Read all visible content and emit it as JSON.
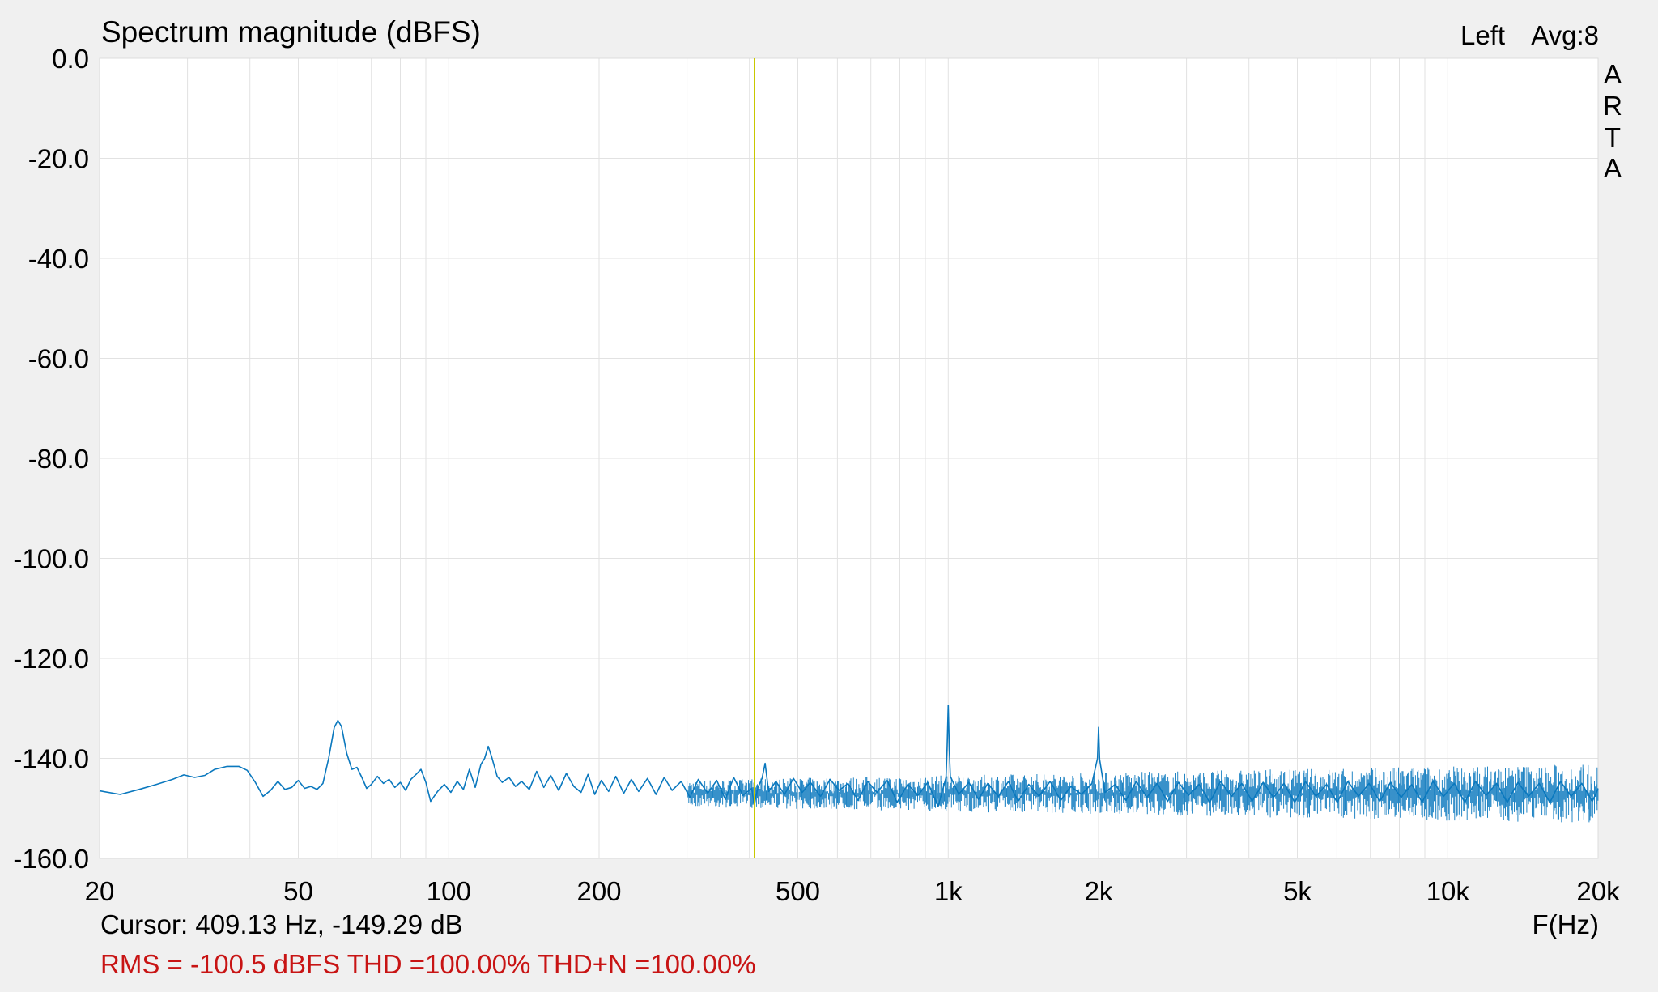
{
  "chart_data": {
    "type": "line",
    "title": "Spectrum magnitude (dBFS)",
    "channel": "Left",
    "averages": "Avg:8",
    "watermark": [
      "A",
      "R",
      "T",
      "A"
    ],
    "xlabel": "F(Hz)",
    "ylabel": "",
    "x_scale": "log",
    "xlim": [
      20,
      20000
    ],
    "ylim": [
      -160,
      0
    ],
    "x_ticks": [
      {
        "value": 20,
        "label": "20"
      },
      {
        "value": 50,
        "label": "50"
      },
      {
        "value": 100,
        "label": "100"
      },
      {
        "value": 200,
        "label": "200"
      },
      {
        "value": 500,
        "label": "500"
      },
      {
        "value": 1000,
        "label": "1k"
      },
      {
        "value": 2000,
        "label": "2k"
      },
      {
        "value": 5000,
        "label": "5k"
      },
      {
        "value": 10000,
        "label": "10k"
      },
      {
        "value": 20000,
        "label": "20k"
      }
    ],
    "y_ticks": [
      {
        "value": 0,
        "label": "0.0"
      },
      {
        "value": -20,
        "label": "-20.0"
      },
      {
        "value": -40,
        "label": "-40.0"
      },
      {
        "value": -60,
        "label": "-60.0"
      },
      {
        "value": -80,
        "label": "-80.0"
      },
      {
        "value": -100,
        "label": "-100.0"
      },
      {
        "value": -120,
        "label": "-120.0"
      },
      {
        "value": -140,
        "label": "-140.0"
      },
      {
        "value": -160,
        "label": "-160.0"
      }
    ],
    "grid": true,
    "cursor": {
      "frequency": 409.13,
      "level": -149.29
    },
    "cursor_text": "Cursor: 409.13 Hz, -149.29 dB",
    "summary_text": "RMS = -100.5 dBFS THD =100.00% THD+N =100.00%",
    "noise_floor_band": [
      -153,
      -141
    ],
    "series": [
      {
        "color": "#0a78be",
        "points": [
          [
            20,
            -146.5
          ],
          [
            22,
            -147.2
          ],
          [
            24,
            -146.2
          ],
          [
            26,
            -145.2
          ],
          [
            28,
            -144.2
          ],
          [
            29.5,
            -143.3
          ],
          [
            31,
            -143.8
          ],
          [
            32.5,
            -143.4
          ],
          [
            34,
            -142.2
          ],
          [
            36,
            -141.6
          ],
          [
            38,
            -141.6
          ],
          [
            39.5,
            -142.4
          ],
          [
            41,
            -144.8
          ],
          [
            42.5,
            -147.6
          ],
          [
            44,
            -146.4
          ],
          [
            45.5,
            -144.6
          ],
          [
            47,
            -146.2
          ],
          [
            48.5,
            -145.8
          ],
          [
            50,
            -144.4
          ],
          [
            51.5,
            -146.0
          ],
          [
            53,
            -145.6
          ],
          [
            54.5,
            -146.2
          ],
          [
            56,
            -145.0
          ],
          [
            57.5,
            -140.0
          ],
          [
            59,
            -133.8
          ],
          [
            60,
            -132.4
          ],
          [
            61,
            -133.6
          ],
          [
            62.5,
            -139.0
          ],
          [
            64,
            -142.2
          ],
          [
            65.5,
            -141.8
          ],
          [
            67,
            -143.8
          ],
          [
            68.5,
            -146.0
          ],
          [
            70,
            -145.2
          ],
          [
            72,
            -143.6
          ],
          [
            74,
            -145.0
          ],
          [
            76,
            -144.2
          ],
          [
            78,
            -145.8
          ],
          [
            80,
            -144.8
          ],
          [
            82,
            -146.4
          ],
          [
            84,
            -144.2
          ],
          [
            86,
            -143.2
          ],
          [
            88,
            -142.2
          ],
          [
            90,
            -144.8
          ],
          [
            92,
            -148.6
          ],
          [
            95,
            -146.6
          ],
          [
            98,
            -145.2
          ],
          [
            101,
            -146.8
          ],
          [
            104,
            -144.6
          ],
          [
            107,
            -146.2
          ],
          [
            110,
            -142.2
          ],
          [
            113,
            -145.8
          ],
          [
            116,
            -141.2
          ],
          [
            118,
            -140.0
          ],
          [
            120,
            -137.6
          ],
          [
            122,
            -139.8
          ],
          [
            125,
            -143.6
          ],
          [
            128,
            -144.8
          ],
          [
            132,
            -143.8
          ],
          [
            136,
            -145.6
          ],
          [
            140,
            -144.6
          ],
          [
            145,
            -146.2
          ],
          [
            150,
            -142.6
          ],
          [
            155,
            -145.8
          ],
          [
            160,
            -143.4
          ],
          [
            166,
            -146.4
          ],
          [
            172,
            -143.0
          ],
          [
            178,
            -145.6
          ],
          [
            184,
            -146.8
          ],
          [
            190,
            -143.2
          ],
          [
            196,
            -147.2
          ],
          [
            202,
            -144.4
          ],
          [
            209,
            -146.6
          ],
          [
            216,
            -143.6
          ],
          [
            224,
            -147.0
          ],
          [
            232,
            -144.2
          ],
          [
            240,
            -146.6
          ],
          [
            250,
            -144.0
          ],
          [
            260,
            -147.2
          ],
          [
            270,
            -143.8
          ],
          [
            280,
            -146.4
          ],
          [
            292,
            -144.6
          ],
          [
            304,
            -147.8
          ],
          [
            316,
            -144.2
          ],
          [
            330,
            -147.0
          ],
          [
            344,
            -144.4
          ],
          [
            358,
            -148.2
          ],
          [
            372,
            -143.8
          ],
          [
            388,
            -147.4
          ],
          [
            404,
            -146.0
          ],
          [
            409,
            -149.3
          ],
          [
            416,
            -145.8
          ],
          [
            424,
            -144.0
          ],
          [
            430,
            -141.0
          ],
          [
            437,
            -146.6
          ],
          [
            452,
            -144.6
          ],
          [
            470,
            -147.2
          ],
          [
            490,
            -144.0
          ],
          [
            510,
            -146.8
          ],
          [
            530,
            -144.8
          ],
          [
            555,
            -147.6
          ],
          [
            580,
            -144.2
          ],
          [
            605,
            -146.4
          ],
          [
            630,
            -145.0
          ],
          [
            660,
            -148.4
          ],
          [
            690,
            -144.6
          ],
          [
            720,
            -146.8
          ],
          [
            755,
            -144.4
          ],
          [
            790,
            -148.8
          ],
          [
            830,
            -145.2
          ],
          [
            870,
            -147.4
          ],
          [
            910,
            -144.8
          ],
          [
            955,
            -149.6
          ],
          [
            990,
            -143.8
          ],
          [
            995,
            -138.0
          ],
          [
            1000,
            -129.4
          ],
          [
            1005,
            -138.2
          ],
          [
            1010,
            -143.6
          ],
          [
            1050,
            -147.2
          ],
          [
            1100,
            -144.8
          ],
          [
            1150,
            -148.2
          ],
          [
            1200,
            -145.0
          ],
          [
            1260,
            -147.6
          ],
          [
            1320,
            -144.6
          ],
          [
            1380,
            -148.6
          ],
          [
            1450,
            -145.2
          ],
          [
            1520,
            -147.6
          ],
          [
            1600,
            -144.6
          ],
          [
            1680,
            -148.4
          ],
          [
            1760,
            -145.6
          ],
          [
            1850,
            -147.2
          ],
          [
            1940,
            -145.0
          ],
          [
            1990,
            -140.0
          ],
          [
            2000,
            -133.8
          ],
          [
            2010,
            -140.2
          ],
          [
            2060,
            -146.8
          ],
          [
            2160,
            -145.2
          ],
          [
            2270,
            -148.4
          ],
          [
            2380,
            -144.6
          ],
          [
            2500,
            -147.8
          ],
          [
            2620,
            -145.0
          ],
          [
            2750,
            -148.6
          ],
          [
            2890,
            -144.8
          ],
          [
            3030,
            -147.4
          ],
          [
            3180,
            -145.2
          ],
          [
            3340,
            -148.8
          ],
          [
            3510,
            -144.6
          ],
          [
            3690,
            -147.6
          ],
          [
            3870,
            -145.0
          ],
          [
            4060,
            -148.6
          ],
          [
            4270,
            -144.8
          ],
          [
            4480,
            -147.8
          ],
          [
            4700,
            -145.0
          ],
          [
            4940,
            -148.8
          ],
          [
            5190,
            -144.6
          ],
          [
            5450,
            -147.6
          ],
          [
            5720,
            -145.2
          ],
          [
            6010,
            -148.8
          ],
          [
            6310,
            -144.6
          ],
          [
            6630,
            -147.6
          ],
          [
            6960,
            -145.0
          ],
          [
            7310,
            -148.6
          ],
          [
            7680,
            -144.8
          ],
          [
            8060,
            -147.8
          ],
          [
            8470,
            -145.2
          ],
          [
            8890,
            -148.8
          ],
          [
            9340,
            -144.6
          ],
          [
            9810,
            -147.6
          ],
          [
            10300,
            -145.0
          ],
          [
            10820,
            -148.8
          ],
          [
            11360,
            -144.6
          ],
          [
            11930,
            -147.4
          ],
          [
            12530,
            -145.0
          ],
          [
            13160,
            -148.8
          ],
          [
            13820,
            -144.8
          ],
          [
            14520,
            -147.6
          ],
          [
            15250,
            -145.0
          ],
          [
            16010,
            -148.8
          ],
          [
            16820,
            -144.6
          ],
          [
            17660,
            -147.6
          ],
          [
            18550,
            -145.0
          ],
          [
            19480,
            -148.6
          ],
          [
            20000,
            -146.0
          ]
        ]
      }
    ]
  }
}
